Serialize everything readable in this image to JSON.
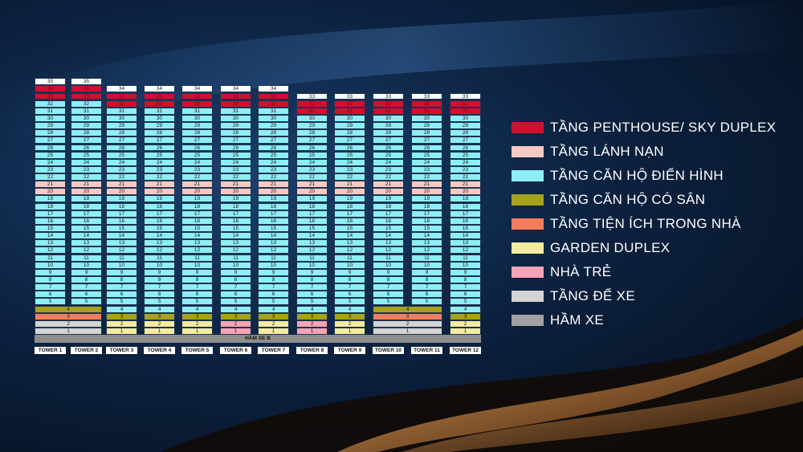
{
  "basement_label": "HẦM XE B",
  "legend": [
    {
      "key": "penthouse",
      "label": "TẦNG PENTHOUSE/ SKY DUPLEX",
      "color": "#d0102e"
    },
    {
      "key": "refuge",
      "label": "TẦNG LÁNH NẠN",
      "color": "#f8c9c4"
    },
    {
      "key": "typical",
      "label": "TẦNG CĂN HỘ ĐIỂN HÌNH",
      "color": "#8eeef5"
    },
    {
      "key": "garden",
      "label": "TẦNG CĂN HỘ CÓ SÂN",
      "color": "#a7a11d"
    },
    {
      "key": "amenity",
      "label": "TẦNG TIỆN ÍCH TRONG NHÀ",
      "color": "#f47d5b"
    },
    {
      "key": "garden_duplex",
      "label": "GARDEN DUPLEX",
      "color": "#f4eba0"
    },
    {
      "key": "nursery",
      "label": "NHÀ TRẺ",
      "color": "#f6a4b5"
    },
    {
      "key": "parking",
      "label": "TẦNG ĐỂ XE",
      "color": "#d4d4d4"
    },
    {
      "key": "basement",
      "label": "HẦM XE",
      "color": "#a4a0a2"
    }
  ],
  "towers": [
    {
      "name": "TOWER 1",
      "floors": 35,
      "pent": [
        33,
        34
      ],
      "f4": "garden",
      "f3": "amenity",
      "f2": "parking",
      "f1": "parking",
      "merged_low": "left"
    },
    {
      "name": "TOWER 2",
      "floors": 35,
      "pent": [
        33,
        34
      ],
      "f4": "garden",
      "f3": "amenity",
      "f2": "parking",
      "f1": "parking",
      "merged_low": "right"
    },
    {
      "name": "TOWER 3",
      "floors": 34,
      "pent": [
        32,
        33
      ],
      "f4": "typical",
      "f3": "garden",
      "f2": "garden_duplex",
      "f1": "garden_duplex"
    },
    {
      "name": "TOWER 4",
      "floors": 34,
      "pent": [
        32,
        33
      ],
      "f4": "typical",
      "f3": "garden",
      "f2": "garden_duplex",
      "f1": "garden_duplex"
    },
    {
      "name": "TOWER 5",
      "floors": 34,
      "pent": [
        32,
        33
      ],
      "f4": "typical",
      "f3": "garden",
      "f2": "garden_duplex",
      "f1": "garden_duplex"
    },
    {
      "name": "TOWER 6",
      "floors": 34,
      "pent": [
        32,
        33
      ],
      "f4": "typical",
      "f3": "garden",
      "f2": "nursery",
      "f1": "nursery"
    },
    {
      "name": "TOWER 7",
      "floors": 34,
      "pent": [
        32,
        33
      ],
      "f4": "typical",
      "f3": "garden",
      "f2": "garden_duplex",
      "f1": "garden_duplex"
    },
    {
      "name": "TOWER 8",
      "floors": 33,
      "pent": [
        31,
        32
      ],
      "f4": "typical",
      "f3": "garden",
      "f2": "nursery",
      "f1": "nursery"
    },
    {
      "name": "TOWER 9",
      "floors": 33,
      "pent": [
        31,
        32
      ],
      "f4": "typical",
      "f3": "garden",
      "f2": "garden_duplex",
      "f1": "garden_duplex"
    },
    {
      "name": "TOWER 10",
      "floors": 33,
      "pent": [
        31,
        32
      ],
      "f4": "garden",
      "f3": "amenity",
      "f2": "parking",
      "f1": "parking",
      "merged_low": "left"
    },
    {
      "name": "TOWER 11",
      "floors": 33,
      "pent": [
        31,
        32
      ],
      "f4": "garden",
      "f3": "amenity",
      "f2": "parking",
      "f1": "parking",
      "merged_low": "right"
    },
    {
      "name": "TOWER 12",
      "floors": 33,
      "pent": [
        31,
        32
      ],
      "f4": "typical",
      "f3": "garden",
      "f2": "garden_duplex",
      "f1": "garden_duplex"
    }
  ],
  "refuge_floors": [
    20,
    21
  ]
}
